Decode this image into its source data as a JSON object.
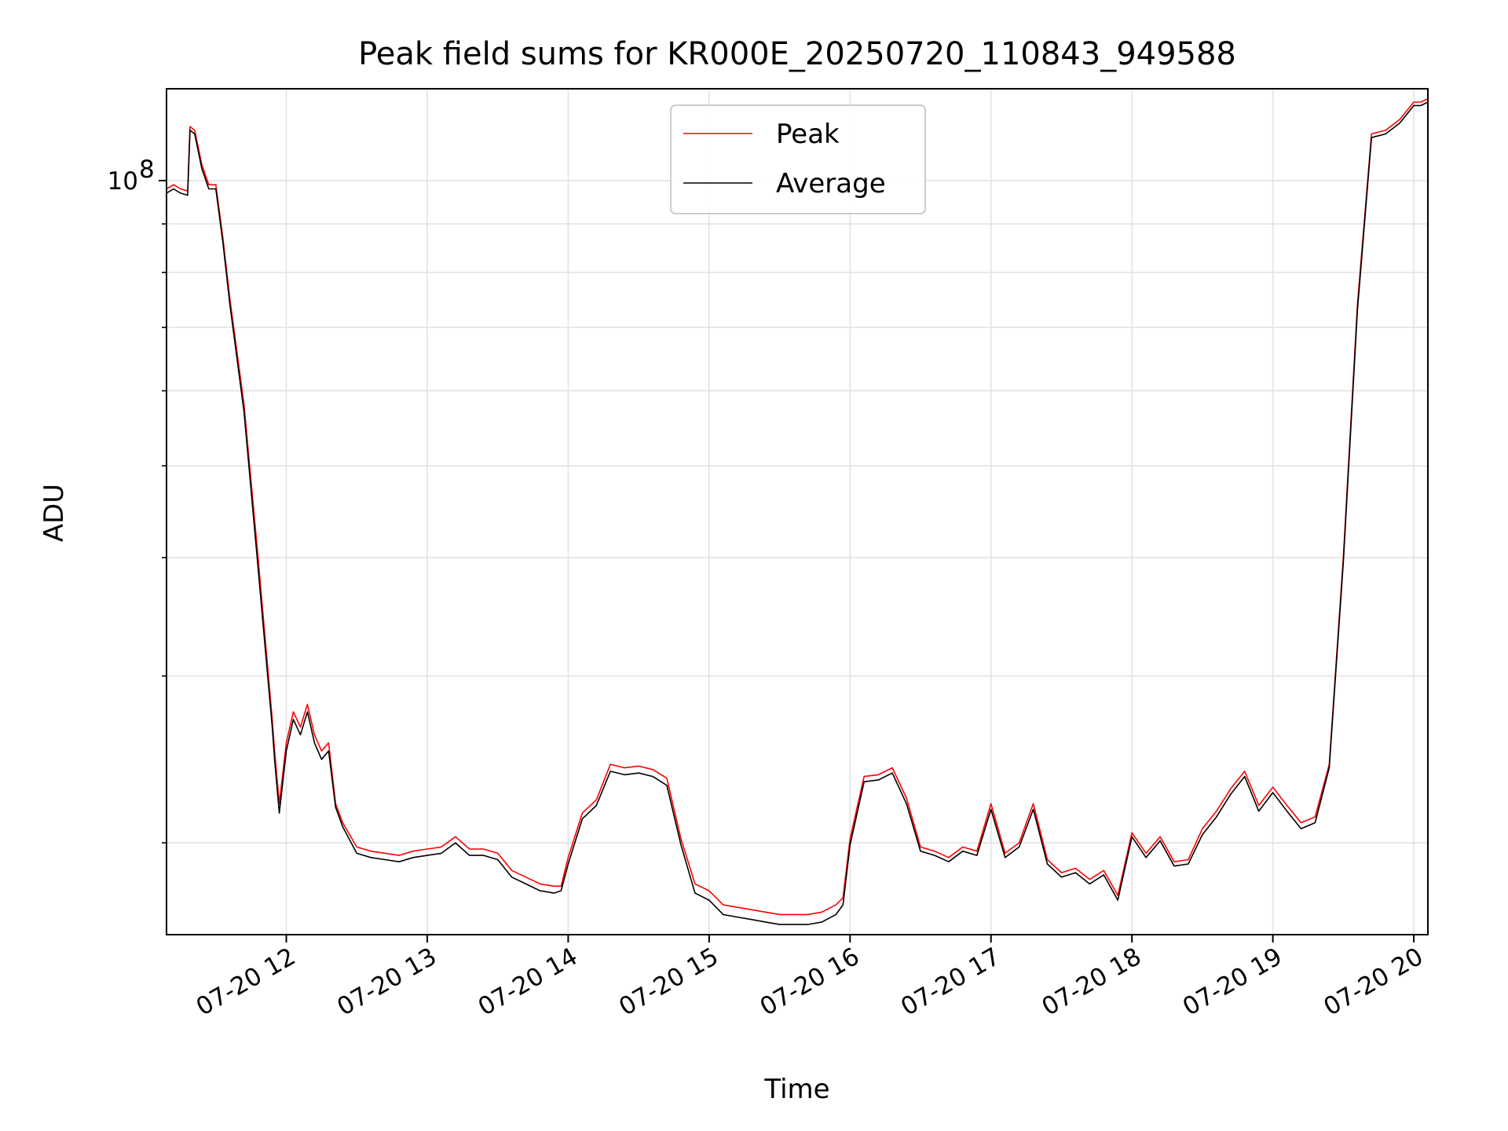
{
  "chart_data": {
    "type": "line",
    "title": "Peak field sums for KR000E_20250720_110843_949588",
    "xlabel": "Time",
    "ylabel": "ADU",
    "y_scale": "log",
    "x_tick_labels": [
      "07-20 12",
      "07-20 13",
      "07-20 14",
      "07-20 15",
      "07-20 16",
      "07-20 17",
      "07-20 18",
      "07-20 19",
      "07-20 20"
    ],
    "x_ticks": [
      "2025-07-20 12:00",
      "2025-07-20 13:00",
      "2025-07-20 14:00",
      "2025-07-20 15:00",
      "2025-07-20 16:00",
      "2025-07-20 17:00",
      "2025-07-20 18:00",
      "2025-07-20 19:00",
      "2025-07-20 20:00"
    ],
    "xlim": [
      "2025-07-20 11:09",
      "2025-07-20 20:06"
    ],
    "y_major_ticks": [
      100000000
    ],
    "y_major_tick_label": "10^8",
    "y_minor_ticks": [
      20000000,
      30000000,
      40000000,
      50000000,
      60000000,
      70000000,
      80000000,
      90000000
    ],
    "ylim": [
      16000000,
      125000000
    ],
    "grid": true,
    "legend_position": "upper center",
    "x": [
      "11:09",
      "11:12",
      "11:15",
      "11:18",
      "11:19",
      "11:21",
      "11:24",
      "11:27",
      "11:30",
      "11:33",
      "11:36",
      "11:42",
      "11:48",
      "11:54",
      "11:55",
      "11:57",
      "12:00",
      "12:03",
      "12:06",
      "12:09",
      "12:12",
      "12:15",
      "12:18",
      "12:21",
      "12:24",
      "12:30",
      "12:36",
      "12:42",
      "12:48",
      "12:54",
      "13:00",
      "13:06",
      "13:12",
      "13:18",
      "13:24",
      "13:30",
      "13:36",
      "13:42",
      "13:48",
      "13:54",
      "13:57",
      "14:00",
      "14:06",
      "14:12",
      "14:18",
      "14:24",
      "14:30",
      "14:36",
      "14:42",
      "14:48",
      "14:54",
      "15:00",
      "15:06",
      "15:12",
      "15:18",
      "15:24",
      "15:30",
      "15:36",
      "15:42",
      "15:48",
      "15:54",
      "15:57",
      "16:00",
      "16:06",
      "16:12",
      "16:18",
      "16:24",
      "16:30",
      "16:36",
      "16:42",
      "16:48",
      "16:54",
      "17:00",
      "17:06",
      "17:12",
      "17:18",
      "17:24",
      "17:30",
      "17:36",
      "17:42",
      "17:48",
      "17:54",
      "18:00",
      "18:06",
      "18:12",
      "18:18",
      "18:24",
      "18:30",
      "18:36",
      "18:42",
      "18:48",
      "18:54",
      "19:00",
      "19:06",
      "19:12",
      "19:18",
      "19:24",
      "19:30",
      "19:36",
      "19:42",
      "19:48",
      "19:54",
      "20:00",
      "20:03",
      "20:06"
    ],
    "series": [
      {
        "name": "Peak",
        "color": "#ff0000",
        "values": [
          98000000,
          99000000,
          98000000,
          97500000,
          114000000,
          113000000,
          104000000,
          99000000,
          99000000,
          87000000,
          75000000,
          58000000,
          40000000,
          27000000,
          25000000,
          22000000,
          25500000,
          27500000,
          26500000,
          28000000,
          26000000,
          25000000,
          25500000,
          22000000,
          21000000,
          19800000,
          19600000,
          19500000,
          19400000,
          19600000,
          19700000,
          19800000,
          20300000,
          19700000,
          19700000,
          19500000,
          18700000,
          18400000,
          18100000,
          18000000,
          18000000,
          19300000,
          21500000,
          22200000,
          24200000,
          24000000,
          24100000,
          23900000,
          23400000,
          20200000,
          18100000,
          17800000,
          17200000,
          17100000,
          17000000,
          16900000,
          16800000,
          16800000,
          16800000,
          16900000,
          17200000,
          17500000,
          20200000,
          23500000,
          23600000,
          24000000,
          22300000,
          19800000,
          19600000,
          19300000,
          19800000,
          19600000,
          22000000,
          19500000,
          20000000,
          22000000,
          19200000,
          18600000,
          18800000,
          18300000,
          18700000,
          17600000,
          20500000,
          19500000,
          20300000,
          19100000,
          19200000,
          20700000,
          21600000,
          22800000,
          23800000,
          21900000,
          22900000,
          21900000,
          21000000,
          21300000,
          24200000,
          40000000,
          74000000,
          112000000,
          113000000,
          116000000,
          121000000,
          121000000,
          122000000
        ]
      },
      {
        "name": "Average",
        "color": "#000000",
        "values": [
          97000000,
          98000000,
          97000000,
          96500000,
          113000000,
          112000000,
          103000000,
          98000000,
          98000000,
          86000000,
          74000000,
          57000000,
          39000000,
          26500000,
          24500000,
          21500000,
          25000000,
          27000000,
          26000000,
          27500000,
          25500000,
          24500000,
          25000000,
          21800000,
          20800000,
          19500000,
          19300000,
          19200000,
          19100000,
          19300000,
          19400000,
          19500000,
          20000000,
          19400000,
          19400000,
          19200000,
          18400000,
          18100000,
          17800000,
          17700000,
          17800000,
          19000000,
          21200000,
          21900000,
          23800000,
          23600000,
          23700000,
          23500000,
          23000000,
          19900000,
          17700000,
          17400000,
          16800000,
          16700000,
          16600000,
          16500000,
          16400000,
          16400000,
          16400000,
          16500000,
          16800000,
          17200000,
          19900000,
          23200000,
          23300000,
          23700000,
          22000000,
          19600000,
          19400000,
          19100000,
          19600000,
          19400000,
          21700000,
          19300000,
          19800000,
          21700000,
          19000000,
          18400000,
          18600000,
          18100000,
          18500000,
          17400000,
          20300000,
          19300000,
          20100000,
          18900000,
          19000000,
          20400000,
          21300000,
          22500000,
          23500000,
          21600000,
          22600000,
          21600000,
          20700000,
          21000000,
          24000000,
          39500000,
          73000000,
          111000000,
          112000000,
          115000000,
          120000000,
          120000000,
          121000000
        ]
      }
    ]
  }
}
